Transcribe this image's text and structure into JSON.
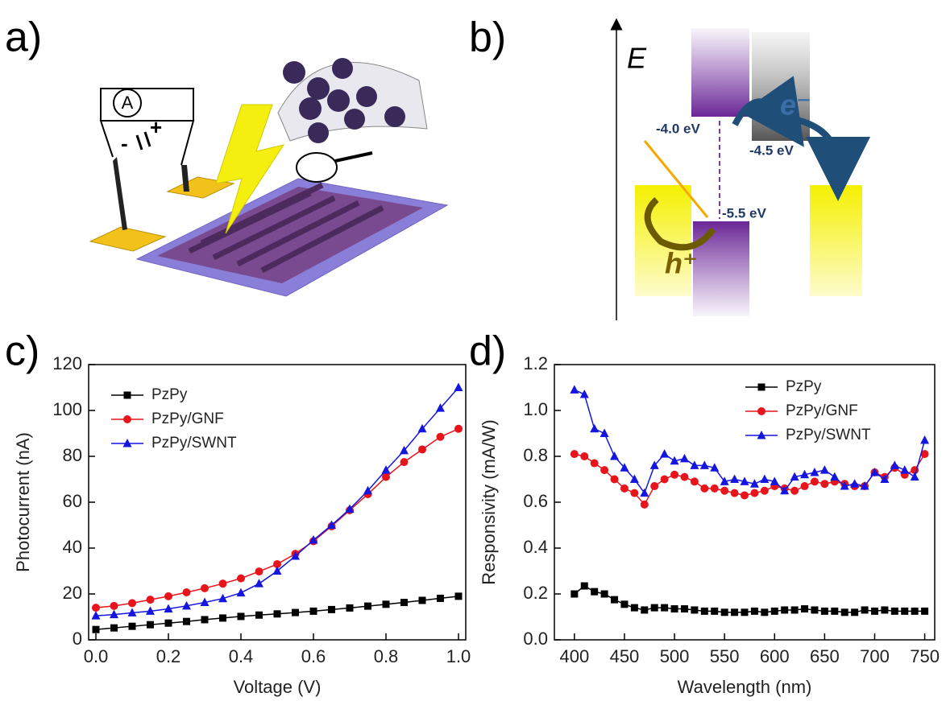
{
  "panels": {
    "labels": [
      "a)",
      "b)",
      "c)",
      "d)"
    ]
  },
  "device": {
    "ammeter": "A",
    "minus": "-",
    "plus": "+"
  },
  "energy_diagram": {
    "axis": "E",
    "levels": [
      "-4.0 eV",
      "-4.5 eV",
      "-5.5 eV"
    ],
    "electron": "e⁻",
    "hole": "h⁺"
  },
  "chart_data": [
    {
      "type": "line",
      "xlabel": "Voltage (V)",
      "ylabel": "Photocurrent (nA)",
      "x": [
        0,
        0.05,
        0.1,
        0.15,
        0.2,
        0.25,
        0.3,
        0.35,
        0.4,
        0.45,
        0.5,
        0.55,
        0.6,
        0.65,
        0.7,
        0.75,
        0.8,
        0.85,
        0.9,
        0.95,
        1.0
      ],
      "series": [
        {
          "name": "PzPy",
          "color": "#000000",
          "marker": "square",
          "values": [
            4.5,
            5.2,
            5.9,
            6.6,
            7.3,
            8,
            8.8,
            9.5,
            10.2,
            10.8,
            11.3,
            11.9,
            12.5,
            13.2,
            13.9,
            14.7,
            15.5,
            16.3,
            17.2,
            18.1,
            19
          ]
        },
        {
          "name": "PzPy/GNF",
          "color": "#e8141c",
          "marker": "circle",
          "values": [
            14,
            14.8,
            16,
            17.5,
            19,
            20.7,
            22.5,
            24.5,
            26.8,
            29.8,
            33,
            37.5,
            43,
            49.5,
            56.5,
            63.5,
            71,
            77.5,
            83,
            88.5,
            92
          ]
        },
        {
          "name": "PzPy/SWNT",
          "color": "#1515e0",
          "marker": "triangle",
          "values": [
            10.5,
            11,
            11.8,
            12.5,
            13.5,
            14.8,
            16.3,
            18,
            20.5,
            24.5,
            30,
            36.5,
            43.5,
            50,
            57,
            65,
            74,
            82.5,
            92,
            101,
            110
          ]
        }
      ],
      "xlim": [
        -0.02,
        1.02
      ],
      "xticks": [
        {
          "value": 0,
          "label": "0.0"
        },
        0.2,
        0.4,
        0.6,
        0.8,
        {
          "value": 1,
          "label": "1.0"
        }
      ],
      "ylim": [
        0,
        120
      ],
      "yticks": [
        0,
        20,
        40,
        60,
        80,
        100,
        120
      ],
      "legend": "upper left"
    },
    {
      "type": "line",
      "xlabel": "Wavelength (nm)",
      "ylabel": "Responsivity (mA/W)",
      "x": [
        400,
        410,
        420,
        430,
        440,
        450,
        460,
        470,
        480,
        490,
        500,
        510,
        520,
        530,
        540,
        550,
        560,
        570,
        580,
        590,
        600,
        610,
        620,
        630,
        640,
        650,
        660,
        670,
        680,
        690,
        700,
        710,
        720,
        730,
        740,
        750
      ],
      "series": [
        {
          "name": "PzPy",
          "color": "#000000",
          "marker": "square",
          "values": [
            0.2,
            0.235,
            0.21,
            0.2,
            0.175,
            0.155,
            0.14,
            0.13,
            0.14,
            0.14,
            0.135,
            0.135,
            0.13,
            0.125,
            0.125,
            0.12,
            0.12,
            0.12,
            0.125,
            0.12,
            0.125,
            0.13,
            0.13,
            0.135,
            0.13,
            0.125,
            0.125,
            0.12,
            0.12,
            0.13,
            0.125,
            0.13,
            0.125,
            0.125,
            0.125,
            0.125
          ]
        },
        {
          "name": "PzPy/GNF",
          "color": "#e8141c",
          "marker": "circle",
          "values": [
            0.81,
            0.8,
            0.77,
            0.74,
            0.7,
            0.66,
            0.64,
            0.59,
            0.67,
            0.7,
            0.72,
            0.71,
            0.69,
            0.66,
            0.66,
            0.65,
            0.64,
            0.63,
            0.64,
            0.65,
            0.67,
            0.66,
            0.65,
            0.67,
            0.69,
            0.68,
            0.69,
            0.68,
            0.67,
            0.67,
            0.73,
            0.71,
            0.75,
            0.72,
            0.74,
            0.81
          ]
        },
        {
          "name": "PzPy/SWNT",
          "color": "#1515e0",
          "marker": "triangle",
          "values": [
            1.09,
            1.07,
            0.92,
            0.9,
            0.8,
            0.75,
            0.7,
            0.64,
            0.76,
            0.81,
            0.78,
            0.79,
            0.76,
            0.76,
            0.75,
            0.69,
            0.7,
            0.69,
            0.68,
            0.7,
            0.69,
            0.65,
            0.71,
            0.72,
            0.73,
            0.74,
            0.71,
            0.67,
            0.68,
            0.67,
            0.73,
            0.7,
            0.76,
            0.74,
            0.71,
            0.87
          ]
        }
      ],
      "xlim": [
        380,
        760
      ],
      "xticks": [
        400,
        450,
        500,
        550,
        600,
        650,
        700,
        750
      ],
      "ylim": [
        0,
        1.2
      ],
      "yticks": [
        {
          "value": 0,
          "label": "0.0"
        },
        0.2,
        0.4,
        0.6,
        0.8,
        {
          "value": 1,
          "label": "1.0"
        },
        1.2
      ],
      "legend": "upper right"
    }
  ]
}
